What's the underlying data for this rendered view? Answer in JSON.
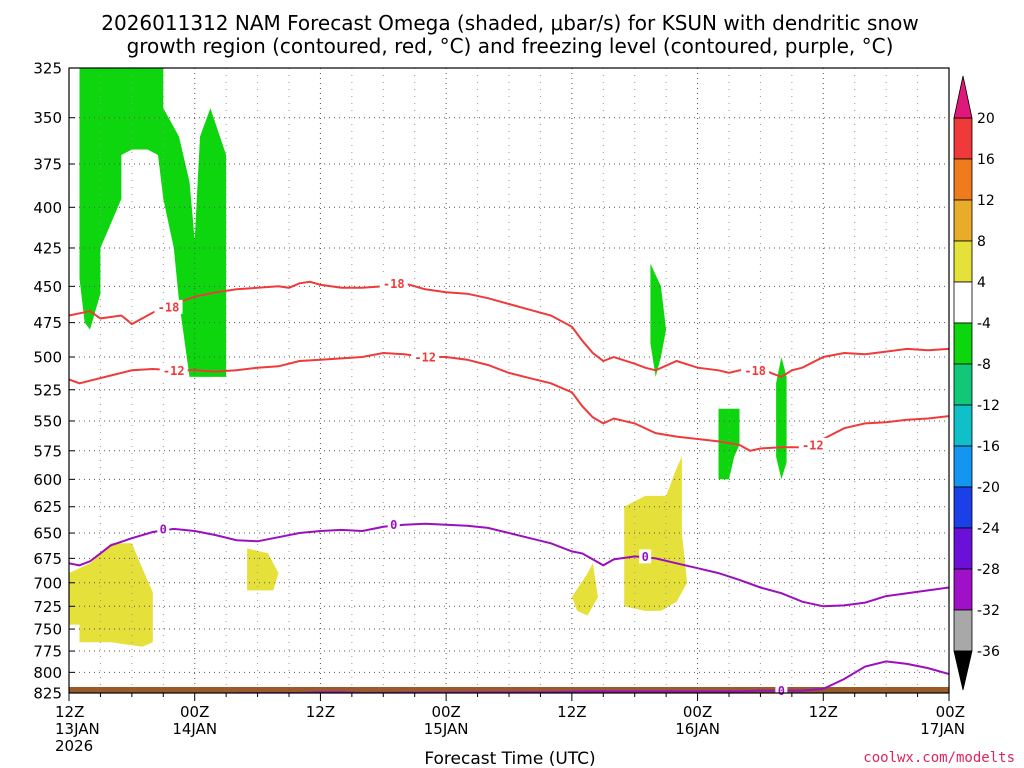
{
  "title_line1": "2026011312 NAM Forecast Omega (shaded, μbar/s) for KSUN with dendritic snow",
  "title_line2": "growth region (contoured, red, °C) and freezing level (contoured, purple, °C)",
  "credit": "coolwx.com/modelts",
  "chart_data": {
    "type": "heatmap",
    "title": "2026011312 NAM Forecast Omega (shaded, μbar/s) for KSUN with dendritic snow growth region (contoured, red, °C) and freezing level (contoured, purple, °C)",
    "xlabel": "Forecast Time (UTC)",
    "ylabel": "",
    "x_unit": "forecast hour",
    "xlim": [
      0,
      84
    ],
    "ylim": [
      825,
      325
    ],
    "y_scale": "log-pressure (hPa)",
    "y_ticks": [
      325,
      350,
      375,
      400,
      425,
      450,
      475,
      500,
      525,
      550,
      575,
      600,
      625,
      650,
      675,
      700,
      725,
      750,
      775,
      800,
      825
    ],
    "x_ticks": [
      {
        "hour": 0,
        "line1": "12Z",
        "line2": "13JAN",
        "line3": "2026"
      },
      {
        "hour": 12,
        "line1": "00Z",
        "line2": "14JAN",
        "line3": ""
      },
      {
        "hour": 24,
        "line1": "12Z",
        "line2": "",
        "line3": ""
      },
      {
        "hour": 36,
        "line1": "00Z",
        "line2": "15JAN",
        "line3": ""
      },
      {
        "hour": 48,
        "line1": "12Z",
        "line2": "",
        "line3": ""
      },
      {
        "hour": 60,
        "line1": "00Z",
        "line2": "16JAN",
        "line3": ""
      },
      {
        "hour": 72,
        "line1": "12Z",
        "line2": "",
        "line3": ""
      },
      {
        "hour": 84,
        "line1": "00Z",
        "line2": "17JAN",
        "line3": ""
      }
    ],
    "grid": true,
    "legend": "colorbar-right",
    "colorbar": {
      "labels": [
        "20",
        "16",
        "12",
        "8",
        "4",
        "-4",
        "-8",
        "-12",
        "-16",
        "-20",
        "-24",
        "-28",
        "-32",
        "-36"
      ],
      "top_color": "#e0187a",
      "bottom_color": "#000000",
      "bands": [
        {
          "from": 20,
          "to": 16,
          "color": "#f03a3a"
        },
        {
          "from": 16,
          "to": 12,
          "color": "#f07a1e"
        },
        {
          "from": 12,
          "to": 8,
          "color": "#e8ac2a"
        },
        {
          "from": 8,
          "to": 4,
          "color": "#e6e03a"
        },
        {
          "from": 4,
          "to": -4,
          "color": "#ffffff"
        },
        {
          "from": -4,
          "to": -8,
          "color": "#0ed60e"
        },
        {
          "from": -8,
          "to": -12,
          "color": "#10c878"
        },
        {
          "from": -12,
          "to": -16,
          "color": "#10c0c8"
        },
        {
          "from": -16,
          "to": -20,
          "color": "#1296f0"
        },
        {
          "from": -20,
          "to": -24,
          "color": "#1c40e8"
        },
        {
          "from": -24,
          "to": -28,
          "color": "#6a10d8"
        },
        {
          "from": -28,
          "to": -32,
          "color": "#a010c8"
        },
        {
          "from": -32,
          "to": -36,
          "color": "#a8a8a8"
        }
      ]
    },
    "shaded_regions": [
      {
        "name": "omega -4 to -8",
        "color": "#0ed60e",
        "polygon": [
          [
            1,
            325
          ],
          [
            9,
            325
          ],
          [
            9,
            345
          ],
          [
            10.5,
            360
          ],
          [
            11.5,
            385
          ],
          [
            12,
            420
          ],
          [
            12.5,
            360
          ],
          [
            13.5,
            345
          ],
          [
            15,
            370
          ],
          [
            15,
            515
          ],
          [
            11.5,
            515
          ],
          [
            10.5,
            460
          ],
          [
            10,
            425
          ],
          [
            9,
            395
          ],
          [
            8.5,
            370
          ],
          [
            7.5,
            367
          ],
          [
            6,
            367
          ],
          [
            5,
            370
          ],
          [
            5,
            395
          ],
          [
            3,
            425
          ],
          [
            3,
            455
          ],
          [
            2,
            480
          ],
          [
            1.5,
            475
          ],
          [
            1,
            445
          ]
        ]
      },
      {
        "name": "omega -4 to -8",
        "color": "#0ed60e",
        "polygon": [
          [
            55.5,
            435
          ],
          [
            56.5,
            450
          ],
          [
            57,
            480
          ],
          [
            56.5,
            500
          ],
          [
            56,
            515
          ],
          [
            55.5,
            490
          ]
        ]
      },
      {
        "name": "omega -4 to -8",
        "color": "#0ed60e",
        "polygon": [
          [
            62,
            540
          ],
          [
            64,
            540
          ],
          [
            64,
            570
          ],
          [
            63.5,
            580
          ],
          [
            63,
            600
          ],
          [
            62,
            600
          ]
        ]
      },
      {
        "name": "omega -4 to -8",
        "color": "#0ed60e",
        "polygon": [
          [
            68,
            500
          ],
          [
            68.5,
            515
          ],
          [
            68.5,
            560
          ],
          [
            68.5,
            585
          ],
          [
            68,
            600
          ],
          [
            67.5,
            580
          ],
          [
            67.5,
            520
          ]
        ]
      },
      {
        "name": "omega 4 to 8",
        "color": "#e6e03a",
        "polygon": [
          [
            0,
            690
          ],
          [
            2,
            680
          ],
          [
            3,
            670
          ],
          [
            4,
            660
          ],
          [
            6,
            660
          ],
          [
            7,
            685
          ],
          [
            8,
            710
          ],
          [
            8,
            765
          ],
          [
            7,
            770
          ],
          [
            4,
            765
          ],
          [
            1,
            765
          ],
          [
            1,
            745
          ],
          [
            0,
            745
          ]
        ]
      },
      {
        "name": "omega 4 to 8",
        "color": "#e6e03a",
        "polygon": [
          [
            17,
            665
          ],
          [
            19,
            670
          ],
          [
            20,
            690
          ],
          [
            19.5,
            708
          ],
          [
            17,
            708
          ]
        ]
      },
      {
        "name": "omega 4 to 8",
        "color": "#e6e03a",
        "polygon": [
          [
            49.5,
            690
          ],
          [
            50,
            680
          ],
          [
            50.5,
            715
          ],
          [
            49.5,
            735
          ],
          [
            48.5,
            730
          ],
          [
            48,
            715
          ]
        ]
      },
      {
        "name": "omega 4 to 8",
        "color": "#e6e03a",
        "polygon": [
          [
            53,
            625
          ],
          [
            55,
            615
          ],
          [
            57,
            615
          ],
          [
            58,
            590
          ],
          [
            58.5,
            580
          ],
          [
            58.5,
            650
          ],
          [
            59,
            700
          ],
          [
            58,
            720
          ],
          [
            56.5,
            730
          ],
          [
            55,
            730
          ],
          [
            53,
            725
          ]
        ]
      }
    ],
    "series": [
      {
        "name": "-18",
        "kind": "isotherm",
        "color": "#f03a3a",
        "x": [
          0,
          2,
          3,
          5,
          6,
          8,
          10,
          12,
          14,
          16,
          18,
          20,
          21,
          22,
          23,
          24,
          26,
          28,
          30,
          32,
          34,
          36,
          38,
          40,
          42,
          44,
          46,
          48,
          49,
          50,
          51,
          52,
          54,
          55,
          56,
          58,
          60,
          62,
          63,
          64,
          66,
          67,
          68,
          69,
          70,
          72,
          74,
          76,
          78,
          80,
          82,
          84
        ],
        "y": [
          470,
          467,
          472,
          470,
          476,
          468,
          462,
          457,
          454,
          452,
          451,
          450,
          451,
          448,
          447,
          449,
          451,
          451,
          450,
          448,
          452,
          454,
          455,
          458,
          462,
          466,
          470,
          478,
          488,
          497,
          503,
          500,
          505,
          508,
          510,
          503,
          508,
          510,
          512,
          510,
          508,
          512,
          515,
          510,
          508,
          500,
          497,
          498,
          496,
          494,
          495,
          494
        ]
      },
      {
        "name": "-12",
        "kind": "isotherm",
        "color": "#f03a3a",
        "x": [
          0,
          1,
          2,
          4,
          6,
          8,
          10,
          12,
          14,
          16,
          18,
          20,
          22,
          24,
          26,
          28,
          30,
          32,
          34,
          36,
          38,
          40,
          42,
          44,
          46,
          48,
          49,
          50,
          51,
          52,
          54,
          56,
          58,
          60,
          62,
          64,
          65,
          66,
          68,
          70,
          72,
          74,
          76,
          78,
          80,
          82,
          84
        ],
        "y": [
          517,
          520,
          518,
          514,
          510,
          509,
          510,
          510,
          511,
          510,
          508,
          507,
          503,
          502,
          501,
          500,
          497,
          498,
          500,
          500,
          502,
          506,
          512,
          516,
          520,
          527,
          538,
          547,
          552,
          548,
          552,
          560,
          563,
          565,
          567,
          570,
          575,
          573,
          572,
          572,
          565,
          556,
          552,
          551,
          549,
          548,
          546
        ]
      },
      {
        "name": "0",
        "kind": "freezing-level",
        "color": "#9a10c0",
        "x": [
          0,
          1,
          2,
          3,
          4,
          6,
          8,
          10,
          12,
          14,
          16,
          18,
          20,
          22,
          24,
          26,
          28,
          30,
          32,
          34,
          36,
          38,
          40,
          42,
          44,
          46,
          48,
          49,
          50,
          51,
          52,
          54,
          56,
          58,
          60,
          62,
          64,
          66,
          68,
          70,
          72,
          74,
          76,
          78,
          80,
          82,
          84
        ],
        "y": [
          680,
          682,
          678,
          670,
          662,
          655,
          649,
          646,
          648,
          652,
          657,
          658,
          654,
          650,
          648,
          647,
          648,
          644,
          642,
          641,
          642,
          643,
          645,
          650,
          655,
          660,
          668,
          670,
          676,
          682,
          676,
          673,
          675,
          680,
          685,
          690,
          697,
          705,
          711,
          720,
          725,
          724,
          721,
          714,
          711,
          708,
          705
        ]
      },
      {
        "name": "0",
        "kind": "freezing-level",
        "color": "#9a10c0",
        "x": [
          16,
          22,
          24,
          26,
          28,
          46,
          50,
          52,
          56,
          60,
          62,
          64,
          66,
          68,
          70,
          72,
          74,
          76,
          78,
          80,
          82,
          84
        ],
        "y": [
          825,
          825,
          824,
          824,
          825,
          824,
          823,
          823,
          823,
          823,
          823,
          823,
          822,
          822,
          822,
          820,
          808,
          793,
          787,
          790,
          795,
          802
        ]
      }
    ],
    "contour_labels": [
      {
        "text": "-18",
        "x": 9.5,
        "y": 464,
        "color": "#f03a3a"
      },
      {
        "text": "-18",
        "x": 31,
        "y": 448,
        "color": "#f03a3a"
      },
      {
        "text": "-18",
        "x": 65.5,
        "y": 510,
        "color": "#f03a3a"
      },
      {
        "text": "-12",
        "x": 10,
        "y": 510,
        "color": "#f03a3a"
      },
      {
        "text": "-12",
        "x": 34,
        "y": 500,
        "color": "#f03a3a"
      },
      {
        "text": "-12",
        "x": 71,
        "y": 570,
        "color": "#f03a3a"
      },
      {
        "text": "0",
        "x": 9,
        "y": 646,
        "color": "#9a10c0"
      },
      {
        "text": "0",
        "x": 31,
        "y": 642,
        "color": "#9a10c0"
      },
      {
        "text": "0",
        "x": 55,
        "y": 673,
        "color": "#9a10c0"
      },
      {
        "text": "0",
        "x": 68,
        "y": 822,
        "color": "#9a10c0"
      }
    ],
    "ground_color": "#9a5a2a"
  }
}
